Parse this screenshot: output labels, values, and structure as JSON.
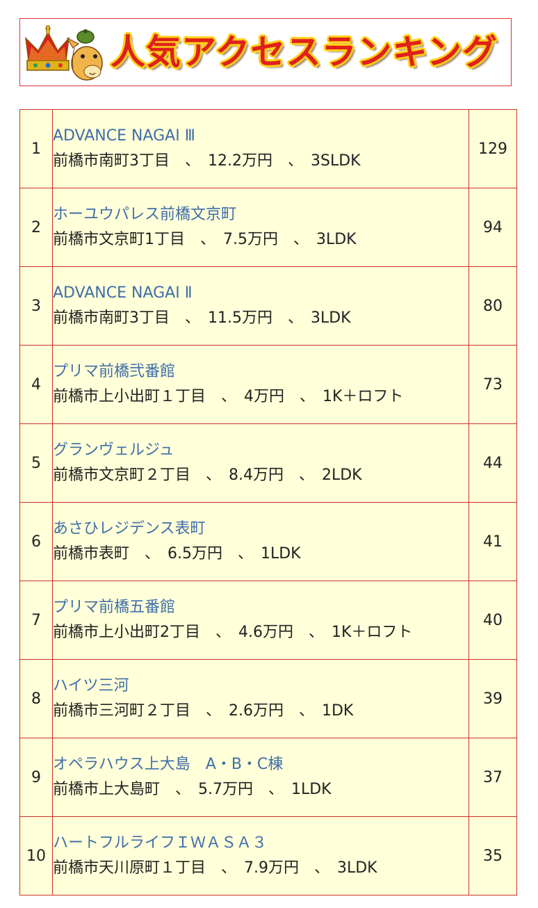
{
  "banner": {
    "title": "人気アクセスランキング"
  },
  "ranking": [
    {
      "rank": "1",
      "name": "ADVANCE NAGAI Ⅲ",
      "detail": "前橋市南町3丁目　、　12.2万円　、　3SLDK",
      "count": "129"
    },
    {
      "rank": "2",
      "name": "ホーユウパレス前橋文京町",
      "detail": "前橋市文京町1丁目　、　7.5万円　、　3LDK",
      "count": "94"
    },
    {
      "rank": "3",
      "name": "ADVANCE NAGAI Ⅱ",
      "detail": "前橋市南町3丁目　、　11.5万円　、　3LDK",
      "count": "80"
    },
    {
      "rank": "4",
      "name": "プリマ前橋弐番館",
      "detail": "前橋市上小出町１丁目　、　4万円　、　1K＋ロフト",
      "count": "73"
    },
    {
      "rank": "5",
      "name": "グランヴェルジュ",
      "detail": "前橋市文京町２丁目　、　8.4万円　、　2LDK",
      "count": "44"
    },
    {
      "rank": "6",
      "name": "あさひレジデンス表町",
      "detail": "前橋市表町　、　6.5万円　、　1LDK",
      "count": "41"
    },
    {
      "rank": "7",
      "name": "プリマ前橋五番館",
      "detail": "前橋市上小出町2丁目　、　4.6万円　、　1K＋ロフト",
      "count": "40"
    },
    {
      "rank": "8",
      "name": "ハイツ三河",
      "detail": "前橋市三河町２丁目　、　2.6万円　、　1DK",
      "count": "39"
    },
    {
      "rank": "9",
      "name": "オペラハウス上大島　A・B・C棟",
      "detail": "前橋市上大島町　、　5.7万円　、　1LDK",
      "count": "37"
    },
    {
      "rank": "10",
      "name": "ハートフルライフＩＷＡＳＡ３",
      "detail": "前橋市天川原町１丁目　、　7.9万円　、　3LDK",
      "count": "35"
    }
  ]
}
